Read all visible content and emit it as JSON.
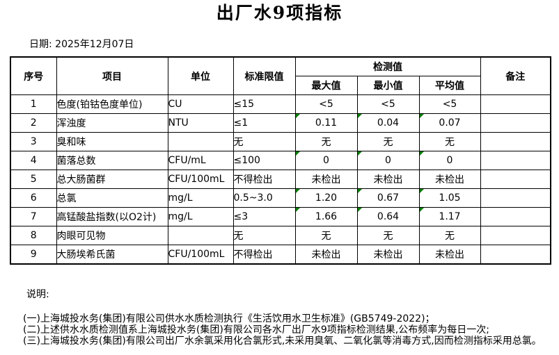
{
  "page": {
    "title": "出厂水9项指标",
    "date_line": "日期: 2025年12月07日"
  },
  "colors": {
    "background": "#ffffff",
    "text": "#000000",
    "table_border": "#000000",
    "flag_triangle": "#008000"
  },
  "table": {
    "headers": {
      "no": "序号",
      "item": "项目",
      "unit": "单位",
      "limit": "标准限值",
      "detection_group": "检测值",
      "max": "最大值",
      "min": "最小值",
      "avg": "平均值",
      "remark": "备注"
    },
    "rows": [
      {
        "no": "1",
        "item": "色度(铂钴色度单位)",
        "unit": "CU",
        "limit": "≤15",
        "max": "<5",
        "min": "<5",
        "avg": "<5",
        "remark": "",
        "flagged": false
      },
      {
        "no": "2",
        "item": "浑浊度",
        "unit": "NTU",
        "limit": "≤1",
        "max": "0.11",
        "min": "0.04",
        "avg": "0.07",
        "remark": "",
        "flagged": true
      },
      {
        "no": "3",
        "item": "臭和味",
        "unit": "",
        "limit": "无",
        "max": "无",
        "min": "无",
        "avg": "无",
        "remark": "",
        "flagged": false
      },
      {
        "no": "4",
        "item": "菌落总数",
        "unit": "CFU/mL",
        "limit": "≤100",
        "max": "0",
        "min": "0",
        "avg": "0",
        "remark": "",
        "flagged": true
      },
      {
        "no": "5",
        "item": "总大肠菌群",
        "unit": "CFU/100mL",
        "limit": "不得检出",
        "max": "未检出",
        "min": "未检出",
        "avg": "未检出",
        "remark": "",
        "flagged": false
      },
      {
        "no": "6",
        "item": "总氯",
        "unit": "mg/L",
        "limit": "0.5~3.0",
        "max": "1.20",
        "min": "0.67",
        "avg": "1.05",
        "remark": "",
        "flagged": true
      },
      {
        "no": "7",
        "item": "高锰酸盐指数(以O2计)",
        "unit": "mg/L",
        "limit": "≤3",
        "max": "1.66",
        "min": "0.64",
        "avg": "1.17",
        "remark": "",
        "flagged": true
      },
      {
        "no": "8",
        "item": "肉眼可见物",
        "unit": "",
        "limit": "无",
        "max": "无",
        "min": "无",
        "avg": "无",
        "remark": "",
        "flagged": false
      },
      {
        "no": "9",
        "item": "大肠埃希氏菌",
        "unit": "CFU/100mL",
        "limit": "不得检出",
        "max": "未检出",
        "min": "未检出",
        "avg": "未检出",
        "remark": "",
        "flagged": false
      }
    ]
  },
  "notes": {
    "label": "说明:",
    "items": [
      "(一)上海城投水务(集团)有限公司供水水质检测执行《生活饮用水卫生标准》(GB5749-2022)；",
      "(二)上述供水水质检测值系上海城投水务(集团)有限公司各水厂出厂水9项指标检测结果,公布频率为每日一次;",
      "(三)上海城投水务(集团)有限公司出厂水余氯采用化合氯形式,未采用臭氧、二氧化氯等消毒方式,因而检测指标采用总氯。"
    ]
  }
}
